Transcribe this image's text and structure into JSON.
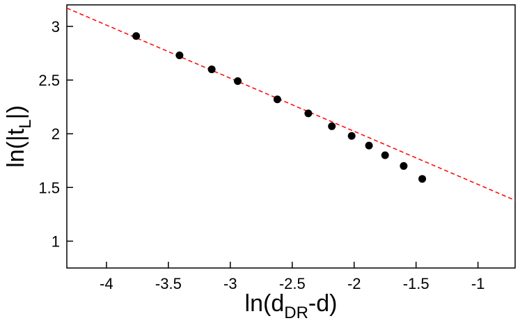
{
  "chart_data": {
    "type": "scatter",
    "xlabel_main": "ln(d",
    "xlabel_sub": "DR",
    "xlabel_tail": "-d)",
    "ylabel_main": "ln(|t",
    "ylabel_sub": "L",
    "ylabel_tail": "|)",
    "xlim": [
      -4.32,
      -0.7
    ],
    "ylim": [
      0.75,
      3.2
    ],
    "xticks": [
      -4,
      -3.5,
      -3,
      -2.5,
      -2,
      -1.5,
      -1
    ],
    "xtick_labels": [
      "-4",
      "-3.5",
      "-3",
      "-2.5",
      "-2",
      "-1.5",
      "-1"
    ],
    "yticks": [
      1,
      1.5,
      2,
      2.5,
      3
    ],
    "ytick_labels": [
      "1",
      "1.5",
      "2",
      "2.5",
      "3"
    ],
    "series": [
      {
        "points": [
          {
            "x": -3.76,
            "y": 2.91
          },
          {
            "x": -3.41,
            "y": 2.73
          },
          {
            "x": -3.15,
            "y": 2.6
          },
          {
            "x": -2.94,
            "y": 2.49
          },
          {
            "x": -2.62,
            "y": 2.32
          },
          {
            "x": -2.37,
            "y": 2.19
          },
          {
            "x": -2.18,
            "y": 2.07
          },
          {
            "x": -2.02,
            "y": 1.98
          },
          {
            "x": -1.88,
            "y": 1.89
          },
          {
            "x": -1.75,
            "y": 1.8
          },
          {
            "x": -1.6,
            "y": 1.7
          },
          {
            "x": -1.45,
            "y": 1.58
          }
        ],
        "color": "#000000"
      }
    ],
    "fit_line": {
      "x": [
        -4.32,
        -0.7
      ],
      "y": [
        3.17,
        1.38
      ],
      "color": "#ff0000",
      "style": "dashed"
    },
    "grid": false,
    "legend": "none"
  }
}
